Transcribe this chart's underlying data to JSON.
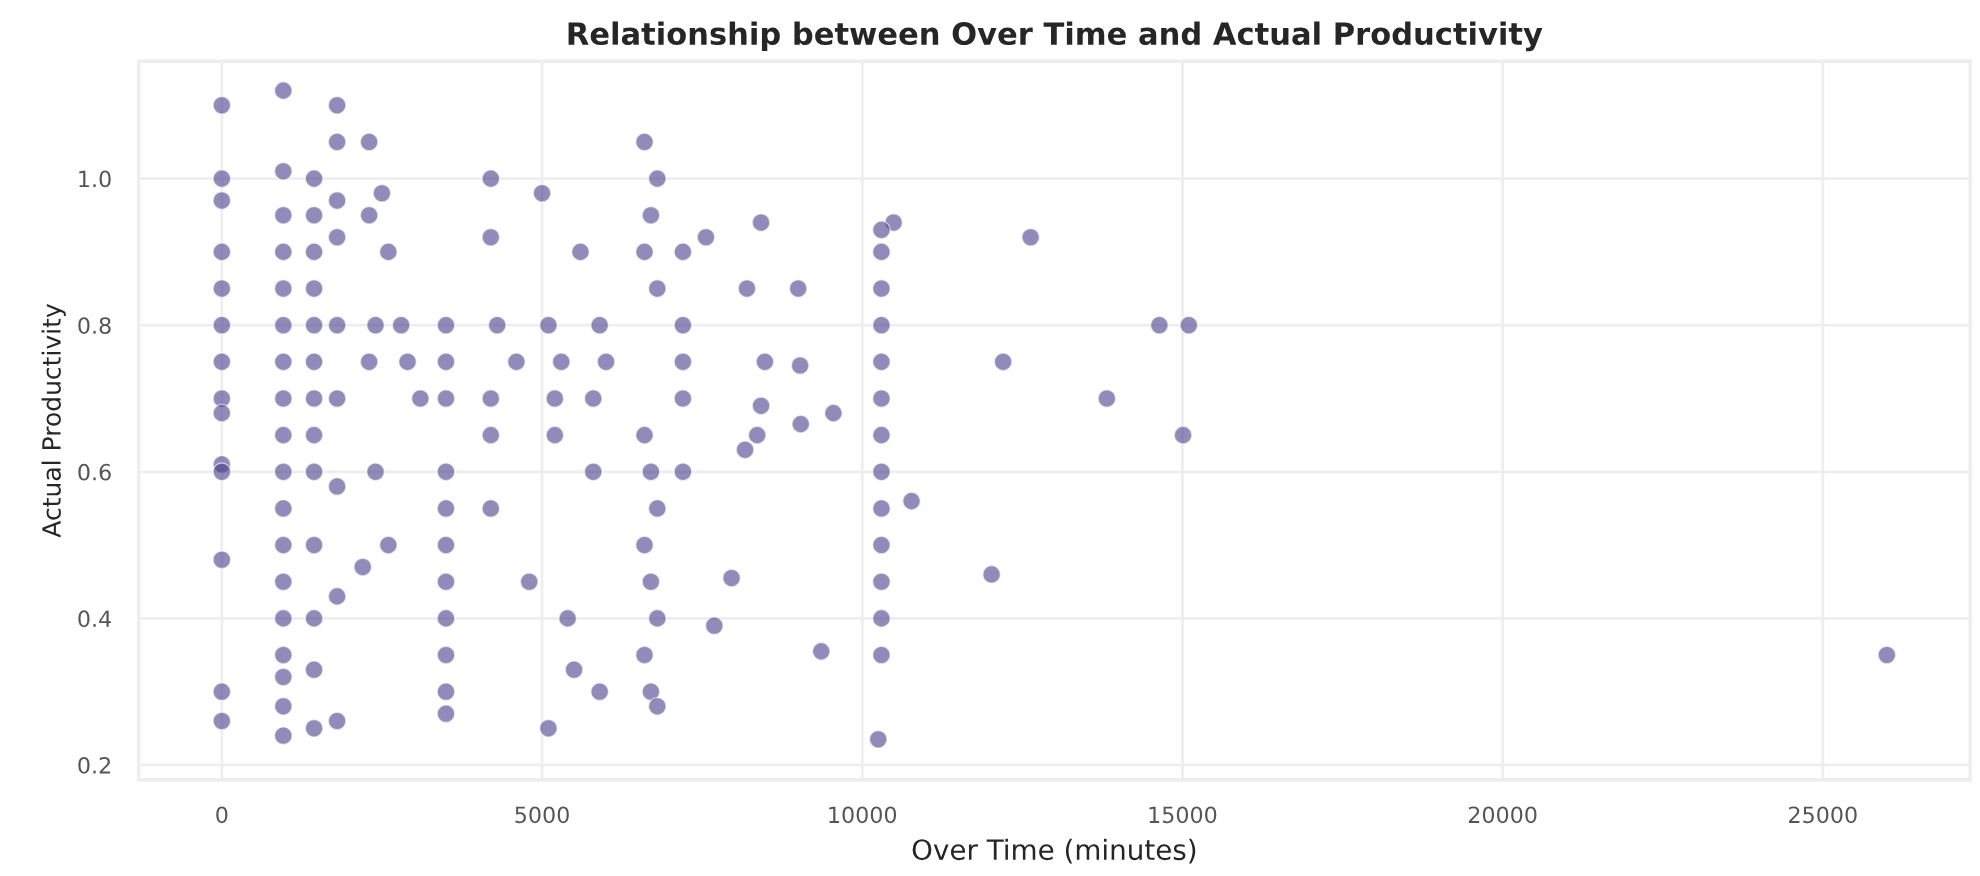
{
  "chart_data": {
    "type": "scatter",
    "title": "Relationship between Over Time and Actual Productivity",
    "xlabel": "Over Time (minutes)",
    "ylabel": "Actual Productivity",
    "xlim": [
      -1300,
      27300
    ],
    "ylim": [
      0.18,
      1.16
    ],
    "xticks": [
      0,
      5000,
      10000,
      15000,
      20000,
      25000
    ],
    "yticks": [
      0.2,
      0.4,
      0.6,
      0.8,
      {
        "value": 1.0,
        "label": "1.0"
      }
    ],
    "grid": true,
    "marker": "circle",
    "color": "#483d8b",
    "x": [
      0,
      0,
      0,
      0,
      0,
      0,
      0,
      0,
      0,
      0,
      0,
      0,
      0,
      0,
      960,
      960,
      960,
      960,
      960,
      960,
      960,
      960,
      960,
      960,
      960,
      960,
      960,
      960,
      960,
      960,
      960,
      960,
      1440,
      1440,
      1440,
      1440,
      1440,
      1440,
      1440,
      1440,
      1440,
      1440,
      1440,
      1440,
      1440,
      1800,
      1800,
      1800,
      1800,
      1800,
      1800,
      1800,
      1800,
      1800,
      2300,
      2500,
      2300,
      2600,
      2400,
      2300,
      2400,
      2600,
      2200,
      3500,
      3500,
      3500,
      3500,
      3500,
      3500,
      3500,
      3500,
      3500,
      3500,
      3500,
      2800,
      4300,
      5100,
      5900,
      2900,
      4600,
      5300,
      6000,
      3100,
      4200,
      5200,
      5800,
      4200,
      4200,
      4200,
      4200,
      5000,
      5600,
      5200,
      5800,
      4800,
      5400,
      5500,
      5900,
      5100,
      6600,
      6800,
      6700,
      6600,
      6800,
      6600,
      6700,
      6800,
      6600,
      6700,
      6800,
      6600,
      6700,
      6800,
      7200,
      7200,
      7200,
      7200,
      7200,
      8420,
      7560,
      10490,
      12630,
      8200,
      9000,
      14640,
      15100,
      12200,
      8480,
      9030,
      13820,
      15010,
      8420,
      9040,
      9550,
      8360,
      8170,
      10770,
      7960,
      12020,
      7690,
      9360,
      10250,
      10300,
      10300,
      10300,
      10300,
      10300,
      10300,
      10300,
      10300,
      10300,
      10300,
      10300,
      10300,
      10300,
      26000
    ],
    "values": [
      1.1,
      1.0,
      0.97,
      0.9,
      0.85,
      0.8,
      0.75,
      0.7,
      0.68,
      0.61,
      0.6,
      0.48,
      0.3,
      0.26,
      1.12,
      1.01,
      0.95,
      0.9,
      0.85,
      0.8,
      0.75,
      0.7,
      0.65,
      0.6,
      0.55,
      0.5,
      0.45,
      0.4,
      0.35,
      0.32,
      0.28,
      0.24,
      1.0,
      0.95,
      0.9,
      0.85,
      0.8,
      0.75,
      0.7,
      0.65,
      0.6,
      0.5,
      0.4,
      0.33,
      0.25,
      1.1,
      1.05,
      0.97,
      0.92,
      0.8,
      0.7,
      0.58,
      0.43,
      0.26,
      1.05,
      0.98,
      0.95,
      0.9,
      0.8,
      0.75,
      0.6,
      0.5,
      0.47,
      0.8,
      0.75,
      0.7,
      0.6,
      0.55,
      0.5,
      0.45,
      0.4,
      0.35,
      0.3,
      0.27,
      0.8,
      0.8,
      0.8,
      0.8,
      0.75,
      0.75,
      0.75,
      0.75,
      0.7,
      0.7,
      0.7,
      0.7,
      1.0,
      0.92,
      0.65,
      0.55,
      0.98,
      0.9,
      0.65,
      0.6,
      0.45,
      0.4,
      0.33,
      0.3,
      0.25,
      1.05,
      1.0,
      0.95,
      0.9,
      0.85,
      0.65,
      0.6,
      0.55,
      0.5,
      0.45,
      0.4,
      0.35,
      0.3,
      0.28,
      0.9,
      0.8,
      0.75,
      0.7,
      0.6,
      0.94,
      0.92,
      0.94,
      0.92,
      0.85,
      0.85,
      0.8,
      0.8,
      0.75,
      0.75,
      0.745,
      0.7,
      0.65,
      0.69,
      0.665,
      0.68,
      0.65,
      0.63,
      0.56,
      0.455,
      0.46,
      0.39,
      0.355,
      0.235,
      0.93,
      0.9,
      0.85,
      0.8,
      0.75,
      0.7,
      0.65,
      0.6,
      0.55,
      0.5,
      0.45,
      0.4,
      0.35,
      0.35
    ]
  }
}
